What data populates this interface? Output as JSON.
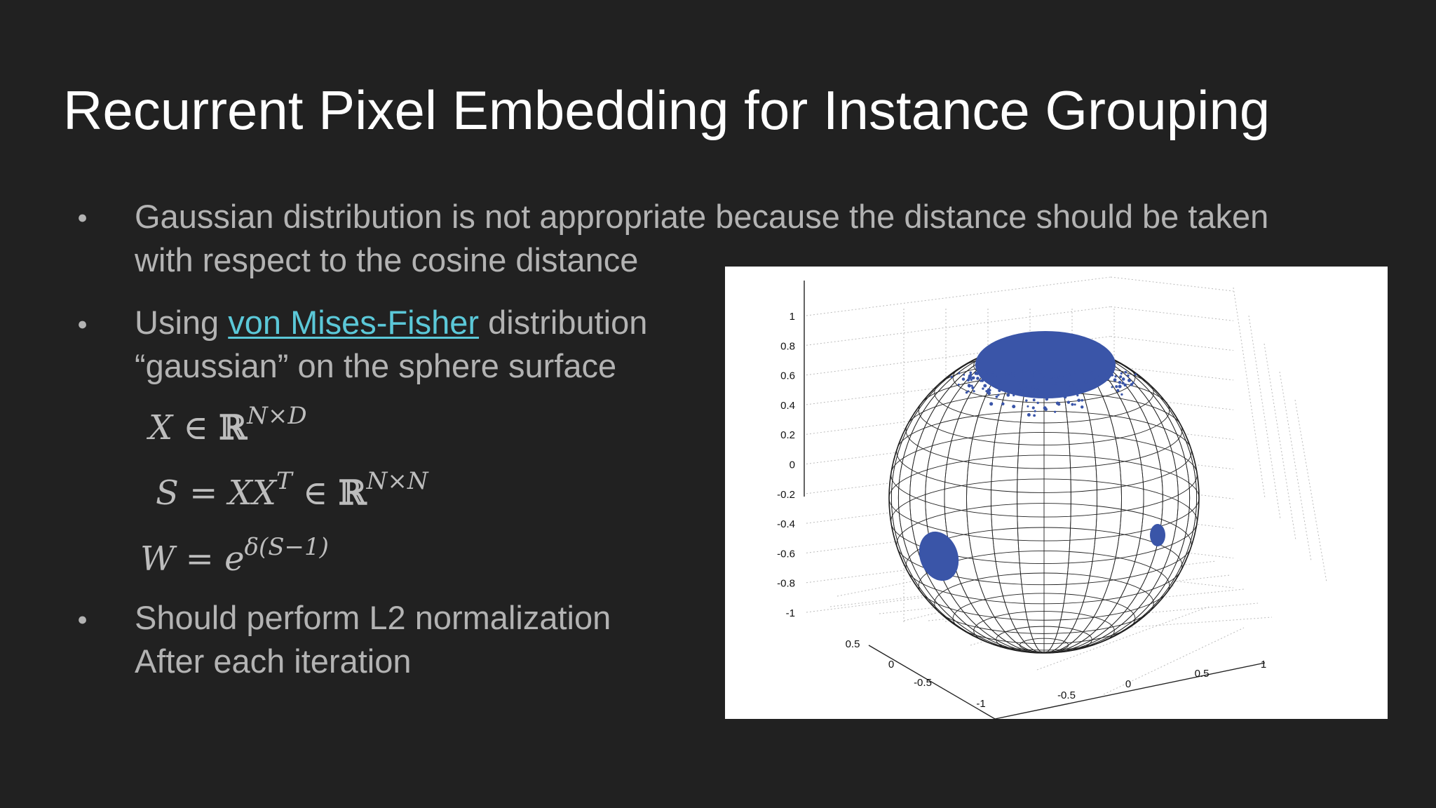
{
  "slide": {
    "title": "Recurrent Pixel Embedding for Instance Grouping",
    "bullet_glyph": "●",
    "bullets": [
      {
        "lines": [
          "Gaussian distribution is not appropriate because the distance should be taken",
          "with respect to the cosine distance"
        ]
      },
      {
        "prefix": "Using ",
        "link": "von Mises-Fisher",
        "suffix": " distribution",
        "line2": "“gaussian” on the sphere surface"
      },
      {
        "lines": [
          "Should perform L2 normalization",
          "After each iteration"
        ]
      }
    ],
    "equations": {
      "eq1": {
        "lhs": "X ∈ ",
        "set": "ℝ",
        "sup": "N×D"
      },
      "eq2": {
        "lhs": "S = XX",
        "t": "T",
        "mid": " ∈ ",
        "set": "ℝ",
        "sup": "N×N"
      },
      "eq3": {
        "lhs": "W = e",
        "sup": "δ(S−1)"
      }
    },
    "colors": {
      "background": "#212121",
      "title": "#ffffff",
      "text": "#b3b3b3",
      "link": "#5bc8d8",
      "points": "#3a55a8"
    }
  },
  "figure": {
    "z_ticks": [
      "1",
      "0.8",
      "0.6",
      "0.4",
      "0.2",
      "0",
      "-0.2",
      "-0.4",
      "-0.6",
      "-0.8",
      "-1"
    ],
    "y_ticks": [
      "0.5",
      "0",
      "-0.5",
      "-1"
    ],
    "x_ticks": [
      "-0.5",
      "0",
      "0.5",
      "1"
    ]
  }
}
